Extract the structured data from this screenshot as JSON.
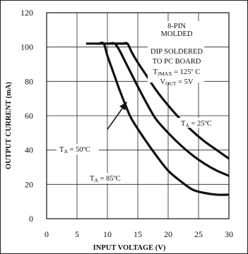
{
  "chart_data": {
    "type": "line",
    "xlabel": "INPUT VOLTAGE (V)",
    "ylabel": "OUTPUT CURRENT (mA)",
    "xlim": [
      0,
      30
    ],
    "ylim": [
      0,
      120
    ],
    "x_ticks": [
      "0",
      "5",
      "10",
      "15",
      "20",
      "25",
      "30"
    ],
    "y_ticks": [
      "0",
      "20",
      "40",
      "60",
      "80",
      "100",
      "120"
    ],
    "grid": true,
    "series": [
      {
        "name": "TA = 25ºC",
        "points": [
          [
            11.3,
            102
          ],
          [
            12.5,
            102
          ],
          [
            13.3,
            102
          ],
          [
            14,
            97
          ],
          [
            15,
            91
          ],
          [
            16.5,
            83
          ],
          [
            18,
            75
          ],
          [
            20,
            66
          ],
          [
            22,
            58
          ],
          [
            24,
            51
          ],
          [
            26,
            45
          ],
          [
            28,
            40
          ],
          [
            30,
            35
          ]
        ]
      },
      {
        "name": "TA = 50ºC",
        "points": [
          [
            10.3,
            102
          ],
          [
            11.2,
            102
          ],
          [
            12,
            98
          ],
          [
            13,
            91
          ],
          [
            14,
            84
          ],
          [
            15,
            77
          ],
          [
            16.5,
            67
          ],
          [
            18,
            58
          ],
          [
            20,
            50
          ],
          [
            22,
            43
          ],
          [
            24,
            37
          ],
          [
            26,
            32
          ],
          [
            28,
            28
          ],
          [
            30,
            25
          ]
        ]
      },
      {
        "name": "TA = 85ºC",
        "points": [
          [
            8.6,
            102
          ],
          [
            9.4,
            102
          ],
          [
            10,
            95
          ],
          [
            11,
            85
          ],
          [
            12,
            75
          ],
          [
            13,
            66
          ],
          [
            14,
            58
          ],
          [
            16,
            47
          ],
          [
            18,
            37
          ],
          [
            20,
            28
          ],
          [
            22,
            22
          ],
          [
            24,
            17
          ],
          [
            26,
            15
          ],
          [
            28,
            14
          ],
          [
            30,
            14
          ]
        ]
      }
    ],
    "flat_top": {
      "x_start": 6.5,
      "x_end": 13.3,
      "y": 102
    },
    "arrow": {
      "from": [
        10,
        52
      ],
      "to": [
        13.2,
        68
      ]
    },
    "labels": {
      "ta25": {
        "main": "T",
        "sub": "A",
        "rest": " = 25ºC"
      },
      "ta50": {
        "main": "T",
        "sub": "A",
        "rest": " = 50ºC"
      },
      "ta85": {
        "main": "T",
        "sub": "A",
        "rest": " = 85ºC"
      }
    },
    "annotation": {
      "line1": "8-PIN",
      "line2": "MOLDED",
      "line3": "DIP SOLDERED",
      "line4": "TO PC BOARD",
      "tmax": {
        "main": "T",
        "sub": "JMAX",
        "rest": " = 125º C"
      },
      "vout": {
        "main": "V",
        "sub": "OUT",
        "rest": " = 5V"
      }
    }
  }
}
